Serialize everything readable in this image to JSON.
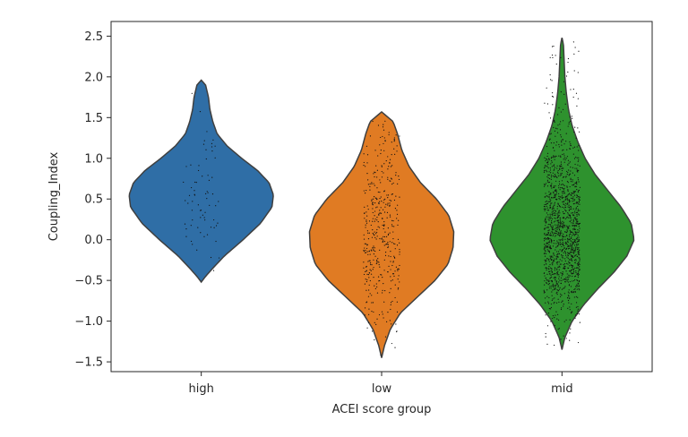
{
  "chart_data": {
    "type": "violin",
    "xlabel": "ACEI score group",
    "ylabel": "Coupling_Index",
    "categories": [
      "high",
      "low",
      "mid"
    ],
    "ylim": [
      -1.62,
      2.68
    ],
    "yticks": [
      -1.5,
      -1.0,
      -0.5,
      0.0,
      0.5,
      1.0,
      1.5,
      2.0,
      2.5
    ],
    "ytick_labels": [
      "−1.5",
      "−1.0",
      "−0.5",
      "0.0",
      "0.5",
      "1.0",
      "1.5",
      "2.0",
      "2.5"
    ],
    "grid": false,
    "legend": "none",
    "series": [
      {
        "category": "high",
        "color": "#2f6ea6",
        "min": -0.52,
        "max": 1.96,
        "n_points": 70,
        "density_profile": [
          [
            -0.52,
            0.0
          ],
          [
            -0.45,
            0.06
          ],
          [
            -0.35,
            0.16
          ],
          [
            -0.2,
            0.32
          ],
          [
            0.0,
            0.58
          ],
          [
            0.2,
            0.82
          ],
          [
            0.4,
            0.98
          ],
          [
            0.55,
            1.0
          ],
          [
            0.7,
            0.94
          ],
          [
            0.85,
            0.78
          ],
          [
            1.0,
            0.56
          ],
          [
            1.15,
            0.36
          ],
          [
            1.3,
            0.22
          ],
          [
            1.45,
            0.16
          ],
          [
            1.6,
            0.12
          ],
          [
            1.75,
            0.1
          ],
          [
            1.9,
            0.06
          ],
          [
            1.96,
            0.0
          ]
        ]
      },
      {
        "category": "low",
        "color": "#e07b23",
        "min": -1.45,
        "max": 1.57,
        "n_points": 420,
        "density_profile": [
          [
            -1.45,
            0.0
          ],
          [
            -1.3,
            0.04
          ],
          [
            -1.1,
            0.12
          ],
          [
            -0.9,
            0.26
          ],
          [
            -0.7,
            0.5
          ],
          [
            -0.5,
            0.74
          ],
          [
            -0.3,
            0.92
          ],
          [
            -0.1,
            0.99
          ],
          [
            0.1,
            1.0
          ],
          [
            0.3,
            0.93
          ],
          [
            0.5,
            0.76
          ],
          [
            0.7,
            0.54
          ],
          [
            0.9,
            0.38
          ],
          [
            1.1,
            0.28
          ],
          [
            1.3,
            0.22
          ],
          [
            1.45,
            0.16
          ],
          [
            1.57,
            0.0
          ]
        ]
      },
      {
        "category": "mid",
        "color": "#2e922e",
        "min": -1.35,
        "max": 2.48,
        "n_points": 1400,
        "density_profile": [
          [
            -1.35,
            0.0
          ],
          [
            -1.2,
            0.04
          ],
          [
            -1.0,
            0.14
          ],
          [
            -0.8,
            0.3
          ],
          [
            -0.6,
            0.5
          ],
          [
            -0.4,
            0.72
          ],
          [
            -0.2,
            0.9
          ],
          [
            0.0,
            1.0
          ],
          [
            0.2,
            0.96
          ],
          [
            0.4,
            0.82
          ],
          [
            0.6,
            0.64
          ],
          [
            0.8,
            0.46
          ],
          [
            1.0,
            0.32
          ],
          [
            1.2,
            0.22
          ],
          [
            1.4,
            0.14
          ],
          [
            1.6,
            0.09
          ],
          [
            1.8,
            0.06
          ],
          [
            2.0,
            0.04
          ],
          [
            2.2,
            0.03
          ],
          [
            2.4,
            0.02
          ],
          [
            2.48,
            0.0
          ]
        ]
      }
    ]
  }
}
